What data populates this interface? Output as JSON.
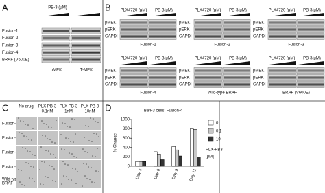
{
  "panel_a": {
    "panel_label": "A",
    "treatment": "PB-3 (μM)",
    "rows": [
      "Fusion-1",
      "Fusion-2",
      "Fusion-3",
      "Fusion-4",
      "BRAF (V600E)"
    ],
    "columns": [
      "pMEK",
      "T-MEK"
    ]
  },
  "panel_b": {
    "panel_label": "B",
    "blots": [
      {
        "drug1": "PLX4720 (μM)",
        "drug2": "PB-3(μM)",
        "rows": [
          "pMEK",
          "pERK",
          "GAPDH"
        ],
        "caption": "Fusion-1"
      },
      {
        "drug1": "PLX4720 (μM)",
        "drug2": "PB-3(μM)",
        "rows": [
          "pMEK",
          "pERK",
          "GAPDH"
        ],
        "caption": "Fusion-2"
      },
      {
        "drug1": "PLX4720 (μM)",
        "drug2": "PB-3(μM)",
        "rows": [
          "pMEK",
          "pERK",
          "GAPDH"
        ],
        "caption": "Fusion-3"
      },
      {
        "drug1": "PLX4720 (μM)",
        "drug2": "PB-3(μM)",
        "rows": [
          "pMEK",
          "pERK",
          "GAPDH"
        ],
        "caption": "Fusion-4"
      },
      {
        "drug1": "PLX4720 (μM)",
        "drug2": "PB-3(μM)",
        "rows": [
          "pMEK",
          "pERK",
          "GAPDH"
        ],
        "caption": "Wild-type BRAF"
      },
      {
        "drug1": "PLX4720 (μM)",
        "drug2": "PB-3(μM)",
        "rows": [
          "pMEK",
          "pERK",
          "GAPDH"
        ],
        "caption": "BRAF (V600E)"
      }
    ]
  },
  "panel_c": {
    "panel_label": "C",
    "columns": [
      [
        "No drug"
      ],
      [
        "PLX PB-3",
        "0.1nM"
      ],
      [
        "PLX PB-3",
        "1nM"
      ],
      [
        "PLX PB-3",
        "10nM"
      ]
    ],
    "rows": [
      [
        "Fusion-1"
      ],
      [
        "Fusion-2"
      ],
      [
        "Fusion-3"
      ],
      [
        "Fusion-4"
      ],
      [
        "Wild-type",
        "BRAF"
      ]
    ]
  },
  "chart_data": {
    "type": "bar",
    "panel_label": "D",
    "title": "Ba/F3 cells: Fusion-4",
    "y_label": "% Change",
    "categories": [
      "Day 2",
      "Day 6",
      "Day 9",
      "Day 11"
    ],
    "series": [
      {
        "name": "0",
        "color": "#ffffff",
        "values": [
          100,
          310,
          420,
          800
        ]
      },
      {
        "name": "0.1",
        "color": "#c8c8c8",
        "values": [
          100,
          260,
          350,
          790
        ]
      },
      {
        "name": "10",
        "color": "#333333",
        "values": [
          100,
          140,
          220,
          200
        ]
      }
    ],
    "legend_title": [
      "PLX-PB3",
      "[μM]"
    ],
    "ylim": [
      0,
      1000
    ],
    "yticks": [
      0,
      200,
      400,
      600,
      800,
      1000
    ]
  }
}
